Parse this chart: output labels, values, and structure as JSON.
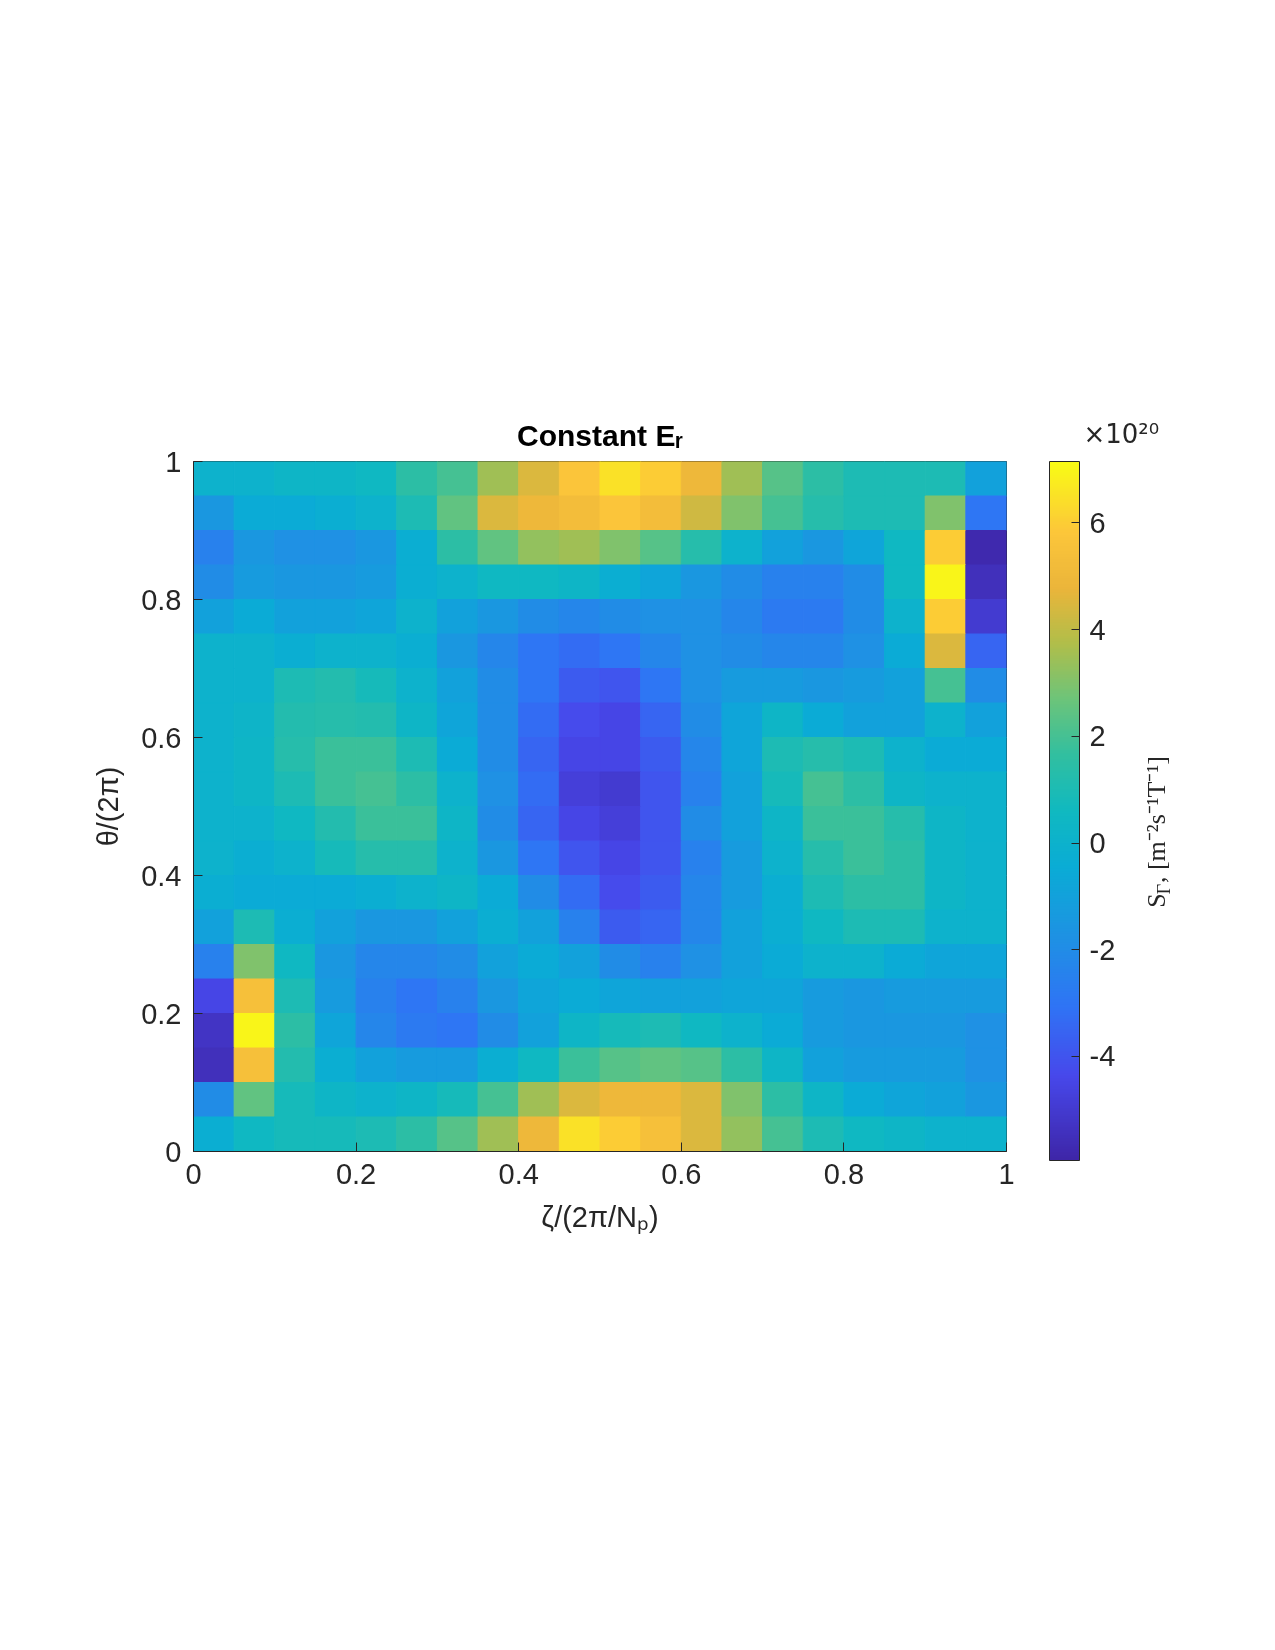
{
  "chart_data": {
    "type": "heatmap",
    "title": "Constant Eᵣ",
    "xlabel": "ζ/(2π/Nₚ)",
    "ylabel": "θ/(2π)",
    "clabel": "S$_{Γ}$, [m⁻²s⁻¹T⁻¹]",
    "annotations": [
      "×10²⁰"
    ],
    "xlim": [
      0,
      1
    ],
    "ylim": [
      0,
      1
    ],
    "xticks": [
      0,
      0.2,
      0.4,
      0.6,
      0.8,
      1
    ],
    "yticks": [
      0,
      0.2,
      0.4,
      0.6,
      0.8,
      1
    ],
    "clim": [
      -5.95,
      7.15
    ],
    "cticks": [
      -4,
      -2,
      0,
      2,
      4,
      6
    ],
    "cells": [
      [
        0.0,
        0.0,
        0.3,
        0.3,
        0.5,
        1.5,
        2.0,
        3.5,
        4.5,
        5.8,
        6.5,
        6.0,
        5.0,
        3.5,
        2.3,
        1.5,
        1.0,
        1.0,
        1.0,
        -1.0
      ],
      [
        -1.5,
        -0.5,
        -0.5,
        -0.3,
        0.0,
        1.0,
        2.5,
        4.5,
        5.0,
        5.3,
        5.8,
        5.3,
        4.3,
        3.0,
        2.0,
        1.3,
        1.0,
        1.0,
        3.0,
        -3.0
      ],
      [
        -2.5,
        -1.5,
        -1.8,
        -1.8,
        -1.5,
        -0.3,
        1.5,
        2.5,
        3.3,
        3.5,
        3.0,
        2.3,
        1.3,
        0.0,
        -1.0,
        -1.5,
        -0.8,
        0.5,
        6.0,
        -5.8
      ],
      [
        -2.0,
        -1.3,
        -1.5,
        -1.5,
        -1.3,
        -0.3,
        0.0,
        0.5,
        0.5,
        0.3,
        -0.3,
        -0.8,
        -1.5,
        -2.0,
        -2.5,
        -2.5,
        -2.0,
        0.5,
        7.0,
        -5.5
      ],
      [
        -1.0,
        -0.5,
        -1.0,
        -1.0,
        -0.8,
        0.0,
        -1.0,
        -1.5,
        -2.0,
        -2.3,
        -2.0,
        -1.8,
        -1.8,
        -2.3,
        -2.8,
        -2.8,
        -2.0,
        0.0,
        6.0,
        -5.0
      ],
      [
        0.0,
        0.0,
        -0.3,
        0.0,
        0.0,
        -0.3,
        -1.5,
        -2.3,
        -3.0,
        -3.3,
        -3.0,
        -2.3,
        -1.8,
        -2.0,
        -2.3,
        -2.3,
        -1.8,
        -0.5,
        4.5,
        -3.5
      ],
      [
        0.0,
        0.0,
        1.0,
        1.2,
        0.8,
        0.0,
        -1.0,
        -2.0,
        -3.0,
        -3.8,
        -4.0,
        -3.0,
        -1.8,
        -1.3,
        -1.3,
        -1.5,
        -1.3,
        -1.0,
        2.0,
        -2.0
      ],
      [
        0.0,
        0.2,
        1.2,
        1.3,
        1.2,
        0.3,
        -0.8,
        -2.0,
        -3.3,
        -4.3,
        -4.5,
        -3.5,
        -2.0,
        -0.8,
        0.3,
        -0.5,
        -1.0,
        -1.0,
        0.0,
        -1.0
      ],
      [
        0.0,
        0.3,
        1.3,
        1.8,
        1.8,
        1.0,
        -0.5,
        -2.0,
        -3.5,
        -4.5,
        -4.5,
        -3.8,
        -2.3,
        -0.8,
        1.0,
        1.3,
        1.0,
        0.0,
        -0.5,
        -0.5
      ],
      [
        0.0,
        0.3,
        1.0,
        1.8,
        2.0,
        1.5,
        0.0,
        -1.8,
        -3.3,
        -4.8,
        -5.0,
        -4.0,
        -2.5,
        -1.0,
        0.8,
        2.0,
        1.5,
        0.3,
        0.0,
        0.0
      ],
      [
        0.0,
        0.0,
        0.5,
        1.2,
        1.8,
        1.8,
        0.3,
        -2.0,
        -3.5,
        -4.5,
        -4.8,
        -4.0,
        -2.0,
        -1.0,
        0.3,
        1.8,
        1.8,
        1.3,
        0.3,
        0.0
      ],
      [
        0.0,
        -0.3,
        0.0,
        0.8,
        1.3,
        1.3,
        0.0,
        -1.5,
        -3.0,
        -4.0,
        -4.5,
        -4.0,
        -2.5,
        -1.3,
        0.0,
        1.3,
        1.8,
        1.5,
        0.3,
        0.0
      ],
      [
        -0.3,
        -0.5,
        -0.5,
        -0.5,
        -0.3,
        0.0,
        0.3,
        -0.5,
        -2.0,
        -3.3,
        -4.3,
        -3.8,
        -2.3,
        -1.3,
        -0.3,
        1.0,
        1.5,
        1.5,
        0.3,
        0.0
      ],
      [
        -1.0,
        1.0,
        -0.3,
        -1.0,
        -1.5,
        -1.5,
        -1.0,
        -0.3,
        -1.0,
        -2.5,
        -3.8,
        -3.5,
        -2.3,
        -1.0,
        -0.3,
        0.5,
        1.0,
        1.0,
        0.0,
        0.0
      ],
      [
        -2.5,
        3.0,
        0.5,
        -1.5,
        -2.3,
        -2.3,
        -2.0,
        -1.0,
        -0.5,
        -1.0,
        -2.0,
        -2.5,
        -1.8,
        -1.0,
        -0.5,
        0.0,
        0.0,
        -0.5,
        -0.8,
        -0.8
      ],
      [
        -4.5,
        5.5,
        1.0,
        -1.3,
        -2.5,
        -3.0,
        -2.5,
        -1.5,
        -0.8,
        -0.5,
        -0.8,
        -1.0,
        -1.0,
        -0.8,
        -0.8,
        -1.3,
        -1.5,
        -1.3,
        -1.3,
        -1.3
      ],
      [
        -5.3,
        7.0,
        1.5,
        -0.8,
        -2.3,
        -2.8,
        -3.0,
        -2.0,
        -1.0,
        0.3,
        0.8,
        1.0,
        0.5,
        0.0,
        -0.5,
        -1.3,
        -1.5,
        -1.5,
        -1.5,
        -1.8
      ],
      [
        -5.5,
        5.5,
        1.2,
        -0.3,
        -1.0,
        -1.3,
        -1.3,
        -0.3,
        0.5,
        1.8,
        2.3,
        2.5,
        2.3,
        1.5,
        0.3,
        -1.0,
        -1.3,
        -1.3,
        -1.3,
        -1.8
      ],
      [
        -2.0,
        2.5,
        0.8,
        0.3,
        0.0,
        0.3,
        0.8,
        2.0,
        3.5,
        4.5,
        5.0,
        5.0,
        4.5,
        3.0,
        1.5,
        0.3,
        -0.5,
        -0.8,
        -1.0,
        -1.5
      ],
      [
        -0.3,
        0.5,
        0.8,
        0.8,
        1.0,
        1.5,
        2.3,
        3.5,
        5.0,
        6.5,
        6.0,
        5.5,
        4.5,
        3.3,
        2.0,
        1.0,
        0.5,
        0.3,
        0.0,
        0.0
      ]
    ]
  }
}
